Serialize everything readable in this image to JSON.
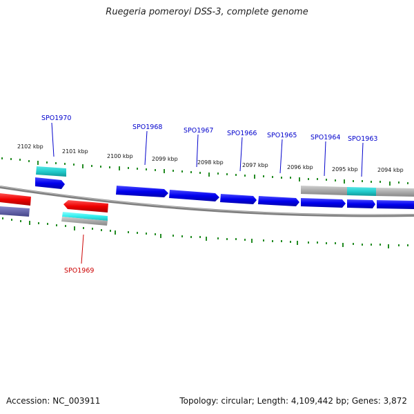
{
  "title": "Ruegeria pomeroyi DSS-3, complete genome",
  "footer": {
    "accession": "Accession: NC_003911",
    "summary": "Topology: circular; Length: 4,109,442 bp; Genes: 3,872"
  },
  "colors": {
    "forward_gene": "#0000ee",
    "reverse_gene": "#ee0000",
    "highlight": "#22cccc",
    "neutral": "#aaaaaa",
    "tick": "#228b22",
    "backbone": "#808080",
    "label_forward": "#0000cc",
    "label_reverse": "#cc0000"
  },
  "scale_labels": [
    "2102 kbp",
    "2101 kbp",
    "2100 kbp",
    "2099 kbp",
    "2098 kbp",
    "2097 kbp",
    "2096 kbp",
    "2095 kbp",
    "2094 kbp"
  ],
  "gene_labels": [
    {
      "name": "SPO1970",
      "strand": "forward"
    },
    {
      "name": "SPO1968",
      "strand": "forward"
    },
    {
      "name": "SPO1967",
      "strand": "forward"
    },
    {
      "name": "SPO1966",
      "strand": "forward"
    },
    {
      "name": "SPO1965",
      "strand": "forward"
    },
    {
      "name": "SPO1964",
      "strand": "forward"
    },
    {
      "name": "SPO1963",
      "strand": "forward"
    },
    {
      "name": "SPO1969",
      "strand": "reverse"
    }
  ]
}
